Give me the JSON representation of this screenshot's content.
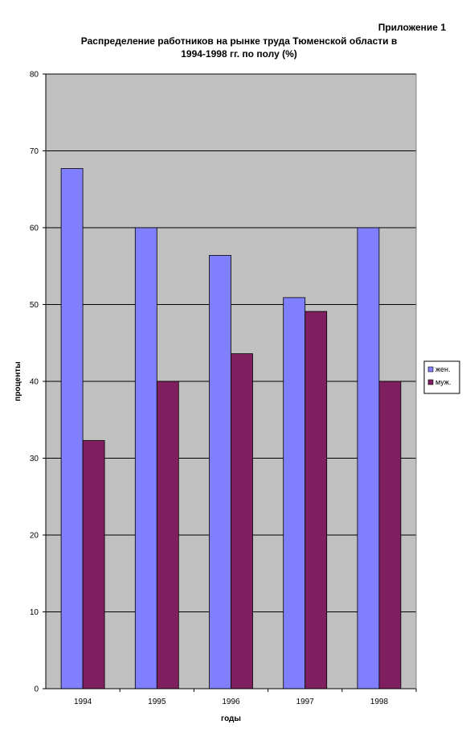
{
  "header": {
    "appendix_label": "Приложение 1",
    "title_line1": "Распределение работников на рынке труда Тюменской области в",
    "title_line2": "1994-1998 гг. по полу (%)"
  },
  "chart_data": {
    "type": "bar",
    "title": "Распределение работников на рынке труда Тюменской области в 1994-1998 гг. по полу (%)",
    "xlabel": "годы",
    "ylabel": "проценты",
    "categories": [
      "1994",
      "1995",
      "1996",
      "1997",
      "1998"
    ],
    "series": [
      {
        "name": "жен.",
        "color": "#8080ff",
        "values": [
          67.7,
          60.0,
          56.4,
          50.9,
          60.0
        ]
      },
      {
        "name": "муж.",
        "color": "#801f5f",
        "values": [
          32.3,
          40.0,
          43.6,
          49.1,
          40.0
        ]
      }
    ],
    "ylim": [
      0,
      80
    ],
    "yticks": [
      0,
      10,
      20,
      30,
      40,
      50,
      60,
      70,
      80
    ],
    "grid": true,
    "plot_background": "#c0c0c0",
    "legend": "right"
  }
}
